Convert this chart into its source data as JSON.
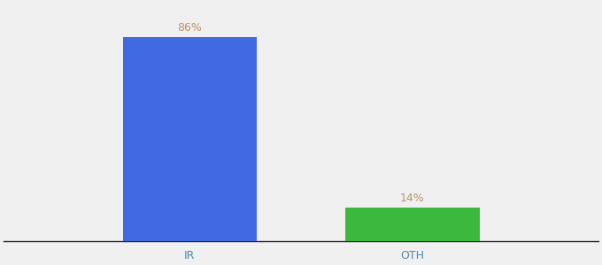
{
  "categories": [
    "IR",
    "OTH"
  ],
  "values": [
    86,
    14
  ],
  "bar_colors": [
    "#4169E1",
    "#3CB93C"
  ],
  "label_values": [
    "86%",
    "14%"
  ],
  "label_color": "#b8956a",
  "background_color": "#f0f0f0",
  "ylim": [
    0,
    100
  ],
  "bar_width": 0.18,
  "label_fontsize": 9,
  "tick_fontsize": 9,
  "tick_color": "#5588aa"
}
